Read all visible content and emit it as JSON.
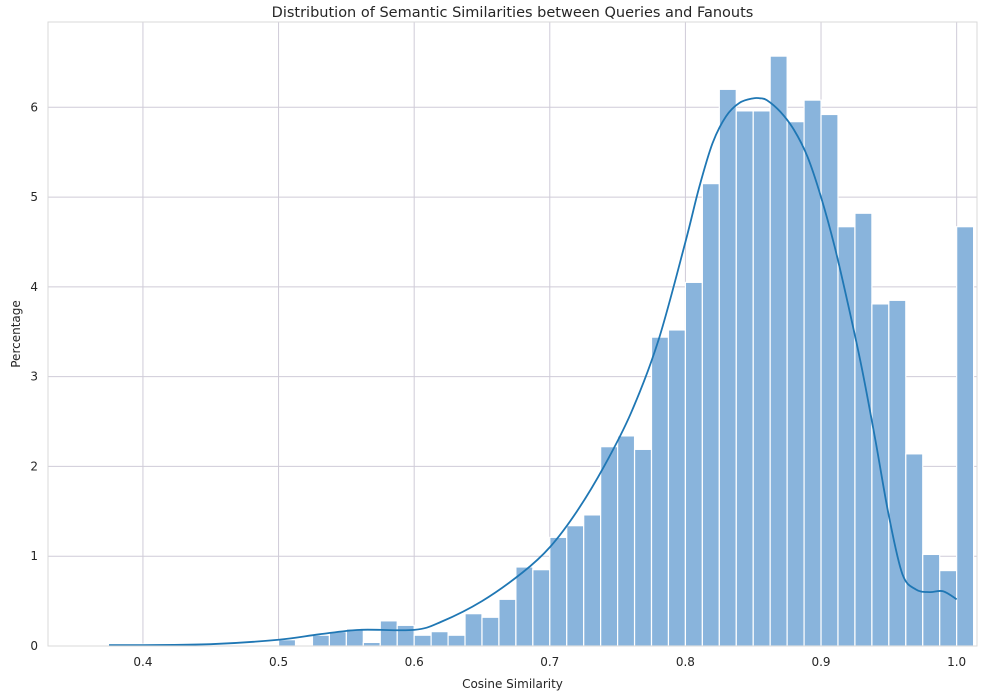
{
  "chart_data": {
    "type": "bar",
    "title": "Distribution of Semantic Similarities between Queries and Fanouts",
    "xlabel": "Cosine Similarity",
    "ylabel": "Percentage",
    "xlim": [
      0.33,
      1.015
    ],
    "ylim": [
      0,
      6.95
    ],
    "xticks": [
      "0.4",
      "0.5",
      "0.6",
      "0.7",
      "0.8",
      "0.9",
      "1.0"
    ],
    "yticks": [
      "0",
      "1",
      "2",
      "3",
      "4",
      "5",
      "6"
    ],
    "xtick_values": [
      0.4,
      0.5,
      0.6,
      0.7,
      0.8,
      0.9,
      1.0
    ],
    "ytick_values": [
      0,
      1,
      2,
      3,
      4,
      5,
      6
    ],
    "grid": true,
    "bin_start": 0.375,
    "bin_width": 0.0125,
    "values": [
      0.02,
      0.02,
      0,
      0,
      0,
      0,
      0,
      0,
      0.01,
      0,
      0.07,
      0,
      0.12,
      0.16,
      0.19,
      0.04,
      0.28,
      0.23,
      0.12,
      0.16,
      0.12,
      0.36,
      0.32,
      0.52,
      0.88,
      0.85,
      1.21,
      1.34,
      1.46,
      2.22,
      2.34,
      2.19,
      3.44,
      3.52,
      4.05,
      5.15,
      6.2,
      5.96,
      5.96,
      6.57,
      5.84,
      6.08,
      5.92,
      4.67,
      4.82,
      3.81,
      3.85,
      2.14,
      1.02,
      0.84,
      4.67
    ],
    "kde": {
      "x": [
        0.375,
        0.4,
        0.45,
        0.5,
        0.53,
        0.56,
        0.6,
        0.62,
        0.65,
        0.68,
        0.7,
        0.72,
        0.74,
        0.76,
        0.78,
        0.8,
        0.81,
        0.82,
        0.83,
        0.84,
        0.85,
        0.855,
        0.86,
        0.87,
        0.88,
        0.89,
        0.9,
        0.91,
        0.92,
        0.93,
        0.94,
        0.95,
        0.96,
        0.97,
        0.98,
        0.99,
        1.0
      ],
      "y": [
        0.01,
        0.01,
        0.02,
        0.07,
        0.13,
        0.18,
        0.18,
        0.27,
        0.5,
        0.82,
        1.1,
        1.5,
        2.0,
        2.6,
        3.4,
        4.5,
        5.1,
        5.6,
        5.9,
        6.05,
        6.1,
        6.1,
        6.08,
        5.95,
        5.75,
        5.45,
        5.0,
        4.45,
        3.8,
        3.1,
        2.3,
        1.45,
        0.8,
        0.63,
        0.6,
        0.61,
        0.52
      ]
    }
  }
}
